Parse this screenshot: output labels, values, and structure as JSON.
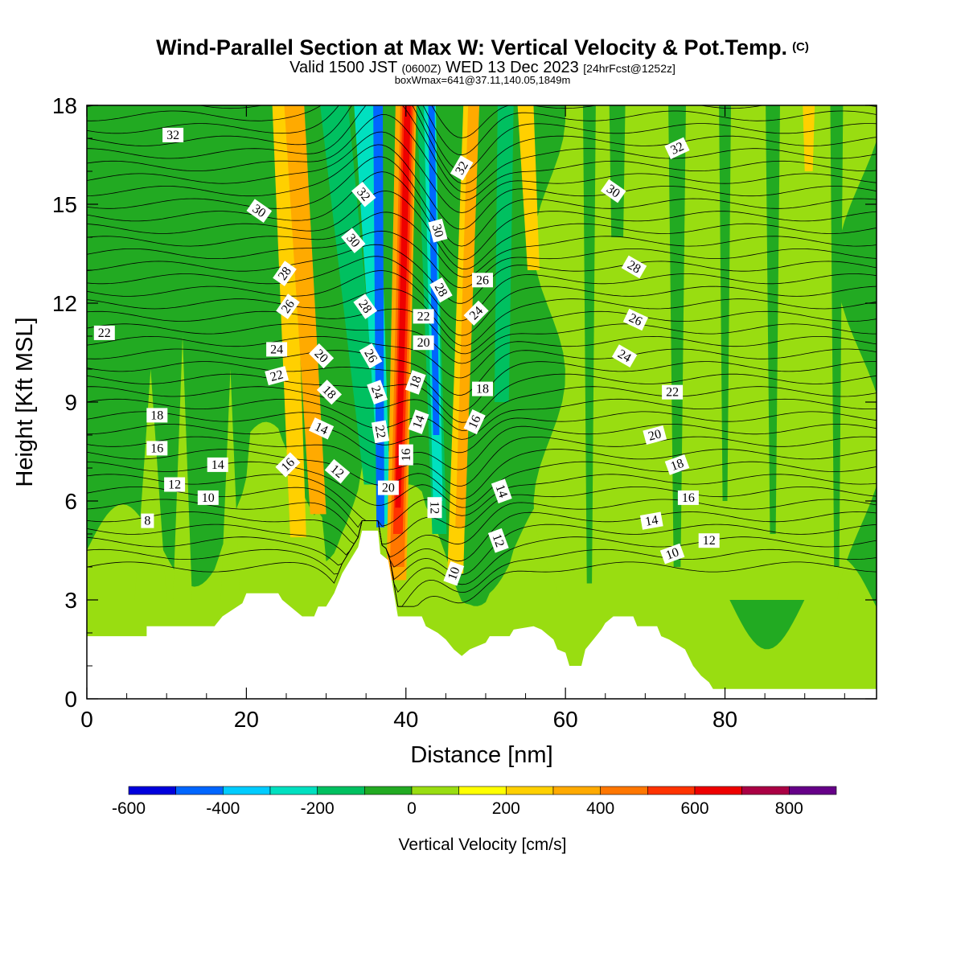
{
  "header": {
    "title": "Wind-Parallel Section at Max W: Vertical Velocity & Pot.Temp.",
    "copyright": "(C)",
    "valid_prefix": "Valid 1500 JST",
    "valid_utc": "(0600Z)",
    "valid_date": "WED 13 Dec 2023",
    "forecast": "[24hrFcst@1252z]",
    "boxwmax": "boxWmax=641@37.11,140.05,1849m"
  },
  "chart_data": {
    "type": "heatmap",
    "xlabel": "Distance [nm]",
    "ylabel": "Height [Kft MSL]",
    "xlim": [
      0,
      99
    ],
    "ylim": [
      0,
      18
    ],
    "x_ticks": [
      0,
      20,
      40,
      60,
      80
    ],
    "y_ticks": [
      0,
      3,
      6,
      9,
      12,
      15,
      18
    ],
    "colorbar": {
      "label": "Vertical Velocity [cm/s]",
      "bounds": [
        -600,
        900
      ],
      "step": 100,
      "tick_values": [
        -600,
        -400,
        -200,
        0,
        200,
        400,
        600,
        800
      ],
      "tick_labels": [
        "-600",
        "-400",
        "-200",
        "0",
        "200",
        "400",
        "600",
        "800"
      ],
      "colors": [
        "#0000dd",
        "#0066ff",
        "#00ccff",
        "#00e0c0",
        "#00c060",
        "#22aa22",
        "#99dd11",
        "#ffff00",
        "#ffd000",
        "#ffaa00",
        "#ff7700",
        "#ff3300",
        "#ee0000",
        "#aa0044",
        "#660088"
      ]
    },
    "terrain": [
      [
        0,
        1.9
      ],
      [
        7.5,
        1.9
      ],
      [
        7.5,
        2.2
      ],
      [
        16,
        2.2
      ],
      [
        17,
        2.5
      ],
      [
        19.5,
        2.9
      ],
      [
        20,
        3.2
      ],
      [
        24,
        3.2
      ],
      [
        24.5,
        3.0
      ],
      [
        27,
        2.5
      ],
      [
        28.5,
        2.5
      ],
      [
        29,
        2.8
      ],
      [
        30,
        2.8
      ],
      [
        31,
        3.2
      ],
      [
        32,
        3.8
      ],
      [
        33,
        4.2
      ],
      [
        34,
        4.6
      ],
      [
        34.5,
        5.1
      ],
      [
        36.5,
        5.1
      ],
      [
        36.8,
        4.4
      ],
      [
        37.8,
        4.2
      ],
      [
        38.5,
        3.2
      ],
      [
        39,
        2.5
      ],
      [
        42,
        2.5
      ],
      [
        42.5,
        2.2
      ],
      [
        44,
        2.0
      ],
      [
        45,
        1.8
      ],
      [
        46,
        1.5
      ],
      [
        47,
        1.3
      ],
      [
        48,
        1.5
      ],
      [
        50,
        1.7
      ],
      [
        50.5,
        1.9
      ],
      [
        53,
        1.9
      ],
      [
        53.5,
        2.1
      ],
      [
        56,
        2.2
      ],
      [
        57,
        2.1
      ],
      [
        58.5,
        1.8
      ],
      [
        59,
        1.5
      ],
      [
        60,
        1.4
      ],
      [
        60.5,
        1.0
      ],
      [
        62,
        1.0
      ],
      [
        62.5,
        1.5
      ],
      [
        63.5,
        1.8
      ],
      [
        64.5,
        2.1
      ],
      [
        65,
        2.3
      ],
      [
        66,
        2.5
      ],
      [
        68.5,
        2.5
      ],
      [
        69,
        2.2
      ],
      [
        71.5,
        2.2
      ],
      [
        72,
        1.9
      ],
      [
        73,
        1.8
      ],
      [
        75,
        1.5
      ],
      [
        76,
        1.0
      ],
      [
        77,
        0.7
      ],
      [
        78,
        0.5
      ],
      [
        78.5,
        0.3
      ],
      [
        99,
        0.3
      ]
    ],
    "vv_bands": [
      {
        "x_top": 24.5,
        "x_bottom": 26.5,
        "w_top": 2.5,
        "w_bottom": 2.0,
        "y_bottom": 4.9,
        "value": 200
      },
      {
        "x_top": 26.0,
        "x_bottom": 29.0,
        "w_top": 2.5,
        "w_bottom": 2.0,
        "y_bottom": 5.6,
        "value": 300
      },
      {
        "x_top": 31.0,
        "x_bottom": 36.0,
        "w_top": 3.5,
        "w_bottom": 2.5,
        "y_bottom": 6.5,
        "value": -200
      },
      {
        "x_top": 35.0,
        "x_bottom": 37.5,
        "w_top": 3.0,
        "w_bottom": 1.2,
        "y_bottom": 5.3,
        "value": -300
      },
      {
        "x_top": 36.5,
        "x_bottom": 36.8,
        "w_top": 1.2,
        "w_bottom": 1.0,
        "y_bottom": 5.2,
        "value": -500
      },
      {
        "x_top": 40.0,
        "x_bottom": 38.8,
        "w_top": 2.6,
        "w_bottom": 2.5,
        "y_bottom": 3.6,
        "value": 300
      },
      {
        "x_top": 40.2,
        "x_bottom": 38.9,
        "w_top": 1.8,
        "w_bottom": 1.8,
        "y_bottom": 4.0,
        "value": 400
      },
      {
        "x_top": 40.2,
        "x_bottom": 39.0,
        "w_top": 1.3,
        "w_bottom": 1.2,
        "y_bottom": 5.0,
        "value": 500
      },
      {
        "x_top": 40.2,
        "x_bottom": 39.0,
        "w_top": 0.8,
        "w_bottom": 0.7,
        "y_bottom": 5.8,
        "value": 600
      },
      {
        "x_top": 42.5,
        "x_bottom": 44.2,
        "w_top": 2.2,
        "w_bottom": 1.8,
        "y_bottom": 5.0,
        "value": -200
      },
      {
        "x_top": 43.0,
        "x_bottom": 44.0,
        "w_top": 1.5,
        "w_bottom": 1.2,
        "y_bottom": 6.0,
        "value": -300
      },
      {
        "x_top": 43.2,
        "x_bottom": 43.8,
        "w_top": 0.8,
        "w_bottom": 0.8,
        "y_bottom": 8.0,
        "value": -500
      },
      {
        "x_top": 48.0,
        "x_bottom": 46.2,
        "w_top": 1.6,
        "w_bottom": 2.0,
        "y_bottom": 3.8,
        "value": 200
      },
      {
        "x_top": 48.5,
        "x_bottom": 46.8,
        "w_top": 1.4,
        "w_bottom": 1.2,
        "y_bottom": 5.2,
        "value": 300
      },
      {
        "x_top": 52.5,
        "x_bottom": 52.0,
        "w_top": 2.0,
        "w_bottom": 1.8,
        "y_bottom": 9.0,
        "value": -200
      },
      {
        "x_top": 55.0,
        "x_bottom": 56.0,
        "w_top": 2.0,
        "w_bottom": 1.5,
        "y_bottom": 13.0,
        "value": 200
      },
      {
        "x_top": 66.5,
        "x_bottom": 66.5,
        "w_top": 2.0,
        "w_bottom": 1.5,
        "y_bottom": 14.0,
        "value": -100
      },
      {
        "x_top": 90.5,
        "x_bottom": 90.5,
        "w_top": 1.5,
        "w_bottom": 1.0,
        "y_bottom": 16.0,
        "value": 200
      }
    ],
    "theta_labels": [
      {
        "text": "32",
        "x": 10.8,
        "y": 17.1,
        "rot": 0
      },
      {
        "text": "30",
        "x": 21.6,
        "y": 14.8,
        "rot": 35
      },
      {
        "text": "28",
        "x": 24.8,
        "y": 12.9,
        "rot": -55
      },
      {
        "text": "26",
        "x": 25.2,
        "y": 11.9,
        "rot": -55
      },
      {
        "text": "24",
        "x": 23.8,
        "y": 10.6,
        "rot": 0
      },
      {
        "text": "22",
        "x": 23.8,
        "y": 9.8,
        "rot": -15
      },
      {
        "text": "22",
        "x": 2.2,
        "y": 11.1,
        "rot": 0
      },
      {
        "text": "18",
        "x": 8.8,
        "y": 8.6,
        "rot": 0
      },
      {
        "text": "16",
        "x": 8.8,
        "y": 7.6,
        "rot": 0
      },
      {
        "text": "14",
        "x": 16.4,
        "y": 7.1,
        "rot": 0
      },
      {
        "text": "12",
        "x": 11.0,
        "y": 6.5,
        "rot": 0
      },
      {
        "text": "10",
        "x": 15.2,
        "y": 6.1,
        "rot": 0
      },
      {
        "text": "8",
        "x": 7.6,
        "y": 5.4,
        "rot": 0
      },
      {
        "text": "32",
        "x": 34.7,
        "y": 15.3,
        "rot": 50
      },
      {
        "text": "30",
        "x": 33.4,
        "y": 13.9,
        "rot": 50
      },
      {
        "text": "28",
        "x": 34.9,
        "y": 11.9,
        "rot": 55
      },
      {
        "text": "26",
        "x": 35.6,
        "y": 10.4,
        "rot": 60
      },
      {
        "text": "24",
        "x": 36.4,
        "y": 9.3,
        "rot": 70
      },
      {
        "text": "22",
        "x": 36.8,
        "y": 8.1,
        "rot": 80
      },
      {
        "text": "20",
        "x": 29.4,
        "y": 10.4,
        "rot": 45
      },
      {
        "text": "18",
        "x": 30.4,
        "y": 9.3,
        "rot": 45
      },
      {
        "text": "14",
        "x": 29.4,
        "y": 8.2,
        "rot": 25
      },
      {
        "text": "16",
        "x": 25.2,
        "y": 7.1,
        "rot": -45
      },
      {
        "text": "12",
        "x": 31.4,
        "y": 6.9,
        "rot": 40
      },
      {
        "text": "20",
        "x": 37.8,
        "y": 6.4,
        "rot": 0
      },
      {
        "text": "22",
        "x": 42.2,
        "y": 11.6,
        "rot": 0
      },
      {
        "text": "20",
        "x": 42.2,
        "y": 10.8,
        "rot": 0
      },
      {
        "text": "18",
        "x": 41.2,
        "y": 9.6,
        "rot": -70
      },
      {
        "text": "16",
        "x": 40.0,
        "y": 7.4,
        "rot": -90
      },
      {
        "text": "14",
        "x": 41.6,
        "y": 8.4,
        "rot": -70
      },
      {
        "text": "32",
        "x": 47.0,
        "y": 16.1,
        "rot": -60
      },
      {
        "text": "30",
        "x": 44.0,
        "y": 14.2,
        "rot": 75
      },
      {
        "text": "28",
        "x": 44.4,
        "y": 12.4,
        "rot": 60
      },
      {
        "text": "26",
        "x": 49.6,
        "y": 12.7,
        "rot": 0
      },
      {
        "text": "24",
        "x": 48.8,
        "y": 11.7,
        "rot": -45
      },
      {
        "text": "18",
        "x": 49.6,
        "y": 9.4,
        "rot": 0
      },
      {
        "text": "16",
        "x": 48.6,
        "y": 8.4,
        "rot": -65
      },
      {
        "text": "12",
        "x": 43.6,
        "y": 5.8,
        "rot": 90
      },
      {
        "text": "14",
        "x": 52.0,
        "y": 6.3,
        "rot": 70
      },
      {
        "text": "12",
        "x": 51.6,
        "y": 4.8,
        "rot": 70
      },
      {
        "text": "10",
        "x": 46.0,
        "y": 3.8,
        "rot": -70
      },
      {
        "text": "32",
        "x": 74.0,
        "y": 16.7,
        "rot": -25
      },
      {
        "text": "30",
        "x": 66.0,
        "y": 15.4,
        "rot": 35
      },
      {
        "text": "28",
        "x": 68.6,
        "y": 13.1,
        "rot": 30
      },
      {
        "text": "26",
        "x": 68.8,
        "y": 11.5,
        "rot": 25
      },
      {
        "text": "24",
        "x": 67.4,
        "y": 10.4,
        "rot": 30
      },
      {
        "text": "22",
        "x": 73.4,
        "y": 9.3,
        "rot": 0
      },
      {
        "text": "20",
        "x": 71.2,
        "y": 8.0,
        "rot": -15
      },
      {
        "text": "18",
        "x": 74.0,
        "y": 7.1,
        "rot": -20
      },
      {
        "text": "16",
        "x": 75.4,
        "y": 6.1,
        "rot": 0
      },
      {
        "text": "14",
        "x": 70.8,
        "y": 5.4,
        "rot": -10
      },
      {
        "text": "12",
        "x": 78.0,
        "y": 4.8,
        "rot": 0
      },
      {
        "text": "10",
        "x": 73.4,
        "y": 4.4,
        "rot": -20
      }
    ]
  }
}
